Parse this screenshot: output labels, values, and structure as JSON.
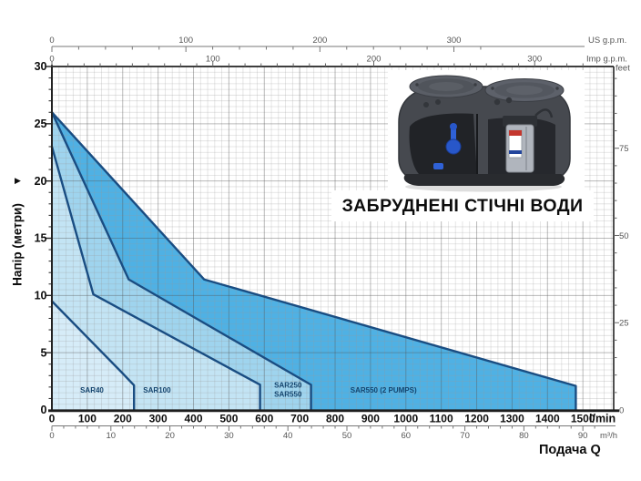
{
  "title": "ЗАБРУДНЕНІ СТІЧНІ ВОДИ",
  "head_axis": {
    "label": "Напір (метри)",
    "arrow_glyph": "▶",
    "ticks": [
      0,
      5,
      10,
      15,
      20,
      25,
      30
    ]
  },
  "flow_axis": {
    "label": "Подача Q"
  },
  "axes": {
    "top_us": {
      "unit": "US g.p.m.",
      "ticks": [
        0,
        100,
        200,
        300
      ],
      "lmin_per_unit": 3.78541
    },
    "top_imp": {
      "unit": "Imp g.p.m.",
      "ticks": [
        0,
        100,
        200,
        300
      ],
      "lmin_per_unit": 4.54609
    },
    "right_ft": {
      "unit": "feet",
      "ticks": [
        0,
        25,
        50,
        75
      ],
      "m_per_unit": 0.3048
    },
    "bottom_lmin": {
      "unit": "l/min",
      "ticks": [
        0,
        100,
        200,
        300,
        400,
        500,
        600,
        700,
        800,
        900,
        1000,
        1100,
        1200,
        1300,
        1400,
        1500
      ]
    },
    "bottom_m3h": {
      "unit": "m³/h",
      "ticks": [
        0,
        10,
        20,
        30,
        40,
        50,
        60,
        70,
        80,
        90
      ],
      "lmin_per_unit": 16.6667
    }
  },
  "chart_data": {
    "type": "area",
    "xlabel": "Подача Q (l/min)",
    "ylabel": "Напір (метри)",
    "xlim": [
      0,
      1587
    ],
    "ylim": [
      0,
      30
    ],
    "grid": {
      "minor_x_lmin": 20,
      "major_x_lmin": 100,
      "minor_y_m": 0.5,
      "major_y_m": 5
    },
    "series": [
      {
        "name": "SAR550 (2 PUMPS)",
        "fill": "#4fb1e4",
        "points": [
          [
            0,
            26
          ],
          [
            430,
            11.4
          ],
          [
            1480,
            2.1
          ],
          [
            1480,
            0
          ]
        ]
      },
      {
        "name": "SAR250 / SAR550",
        "fill": "#9fd4ee",
        "points": [
          [
            0,
            26
          ],
          [
            217,
            11.4
          ],
          [
            732,
            2.2
          ],
          [
            732,
            0
          ]
        ]
      },
      {
        "name": "SAR100",
        "fill": "#c3e4f4",
        "points": [
          [
            0,
            23
          ],
          [
            117,
            10.1
          ],
          [
            588,
            2.2
          ],
          [
            588,
            0
          ]
        ]
      },
      {
        "name": "SAR40",
        "fill": "#d6ecf8",
        "points": [
          [
            0,
            9.5
          ],
          [
            195,
            3.35
          ],
          [
            232,
            2.15
          ],
          [
            232,
            0
          ]
        ]
      }
    ],
    "region_labels": [
      {
        "q": 80,
        "m": 1.5,
        "lines": [
          "SAR40"
        ]
      },
      {
        "q": 258,
        "m": 1.5,
        "lines": [
          "SAR100"
        ]
      },
      {
        "q": 628,
        "m": 1.95,
        "lines": [
          "SAR250",
          "SAR550"
        ]
      },
      {
        "q": 843,
        "m": 1.5,
        "lines": [
          "SAR550 (2 PUMPS)"
        ]
      }
    ],
    "line_color": "#1a4d82",
    "legend_position": "none"
  }
}
